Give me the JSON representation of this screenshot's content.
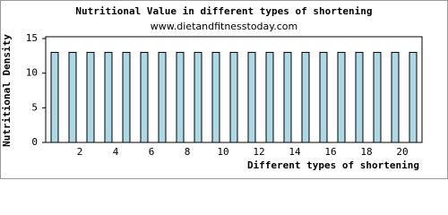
{
  "chart_data": {
    "type": "bar",
    "title": "Nutritional Value in different types of shortening",
    "subtitle": "www.dietandfitnesstoday.com",
    "x_label": "Different types of shortening",
    "y_label": "Nutritional Density",
    "categories": [
      null,
      "2",
      null,
      "4",
      null,
      "6",
      null,
      "8",
      null,
      "10",
      null,
      "12",
      null,
      "14",
      null,
      "16",
      null,
      "18",
      null,
      "20",
      null
    ],
    "values": [
      13,
      13,
      13,
      13,
      13,
      13,
      13,
      13,
      13,
      13,
      13,
      13,
      13,
      13,
      13,
      13,
      13,
      13,
      13,
      13,
      13
    ],
    "color": "#add8e6",
    "ylim": [
      0,
      15
    ],
    "yticks": [
      0,
      5,
      10,
      15
    ],
    "grid": false
  }
}
